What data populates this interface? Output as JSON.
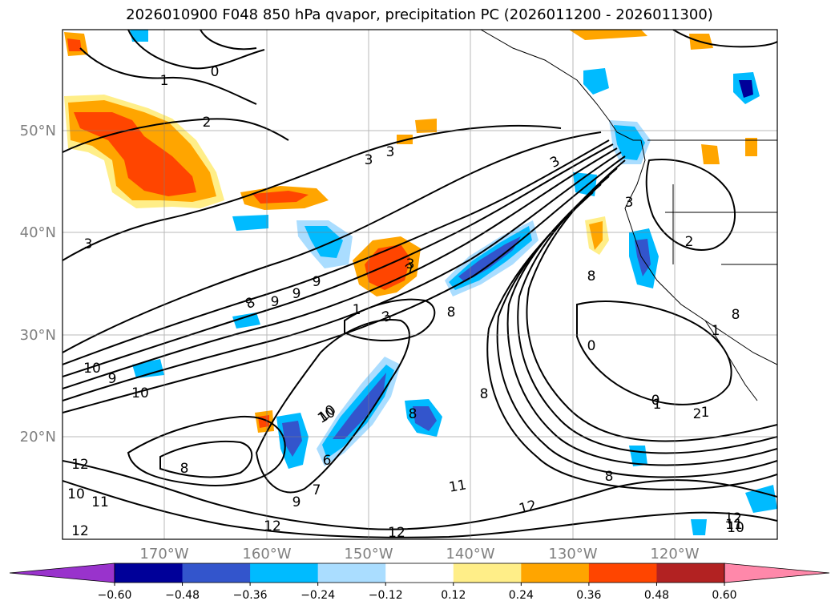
{
  "title": "2026010900 F048 850 hPa qvapor, precipitation PC (2026011200 - 2026011300)",
  "lat_labels": [
    "50°N",
    "40°N",
    "30°N",
    "20°N"
  ],
  "lon_labels": [
    "170°W",
    "160°W",
    "150°W",
    "140°W",
    "130°W",
    "120°W"
  ],
  "contour_labels": [
    "0",
    "1",
    "2",
    "3",
    "3",
    "3",
    "3",
    "3",
    "2",
    "2",
    "3",
    "1",
    "3",
    "1",
    "0",
    "1",
    "2",
    "8",
    "9",
    "9",
    "9",
    "10",
    "10",
    "9",
    "10",
    "8",
    "12",
    "12",
    "11",
    "10",
    "12",
    "12",
    "12",
    "7",
    "9",
    "8",
    "8",
    "6",
    "10",
    "8",
    "8",
    "11",
    "12",
    "8",
    "8",
    "0",
    "1",
    "11",
    "10"
  ],
  "colorbar": {
    "ticks": [
      "−0.60",
      "−0.48",
      "−0.36",
      "−0.24",
      "−0.12",
      "0.12",
      "0.24",
      "0.36",
      "0.48",
      "0.60"
    ],
    "colors": [
      "#9933cc",
      "#000099",
      "#3355cc",
      "#00bbff",
      "#aaddff",
      "#ffffff",
      "#ffee88",
      "#ffa500",
      "#ff4500",
      "#b22222",
      "#ff88aa"
    ]
  },
  "precip_colors": {
    "blue_light": "#aaddff",
    "blue": "#00bbff",
    "blue_dark": "#3355cc",
    "navy": "#000099",
    "yellow": "#ffee88",
    "orange": "#ffa500",
    "red_orange": "#ff4500",
    "dark_red": "#b22222"
  }
}
